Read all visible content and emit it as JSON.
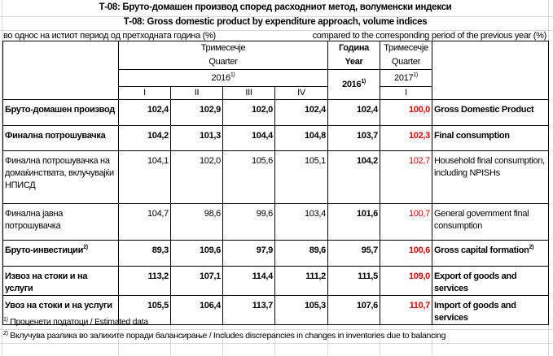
{
  "title_mk": "Т-08: Бруто-домашен производ според расходниот метод, волуменски индекси",
  "title_en": "Т-08: Gross domestic product by expenditure approach, volume indices",
  "subtitle_mk": "во однос на истиот период од претходната година (%)",
  "subtitle_en": "compared to the corresponding period of the previous year (%)",
  "header": {
    "quarter_mk": "Тримесечје",
    "quarter_en": "Quarter",
    "year_mk": "Година",
    "year_en": "Year",
    "year2016": "2016",
    "year2017": "2017",
    "fn1": "1)",
    "quarters": [
      "I",
      "II",
      "III",
      "IV"
    ],
    "q2017": "I"
  },
  "rows": [
    {
      "mk": "Бруто-домашен производ",
      "en": "Gross Domestic Product",
      "values": [
        "102,4",
        "102,9",
        "102,0",
        "102,4"
      ],
      "year": "102,4",
      "q2017": "100,0"
    },
    {
      "mk": "Финална потрошувачка",
      "en": "Final consumption",
      "values": [
        "104,2",
        "101,3",
        "104,4",
        "104,8"
      ],
      "year": "103,7",
      "q2017": "102,3"
    },
    {
      "mk": "Финална потрошувачка на домаќинствата, вклучувајќи НПИСД",
      "en": "Household final consumption, including NPISHs",
      "values": [
        "104,1",
        "102,0",
        "105,6",
        "105,1"
      ],
      "year": "104,2",
      "q2017": "102,7"
    },
    {
      "mk": "Финална јавна потрошувачка",
      "en": "General government final consumption",
      "values": [
        "104,7",
        "98,6",
        "99,6",
        "103,4"
      ],
      "year": "101,6",
      "q2017": "100,7"
    },
    {
      "mk": "Бруто-инвестиции",
      "en": "Gross capital formation",
      "fn": "2)",
      "values": [
        "89,3",
        "109,6",
        "97,9",
        "89,6"
      ],
      "year": "95,7",
      "q2017": "100,6"
    },
    {
      "mk": "Извоз на стоки и на услуги",
      "en": "Export of goods and services",
      "values": [
        "113,2",
        "107,1",
        "114,4",
        "111,2"
      ],
      "year": "111,5",
      "q2017": "109,0"
    },
    {
      "mk": "Увоз на стоки и на услуги",
      "en": "Import of goods and services",
      "values": [
        "105,5",
        "106,4",
        "113,7",
        "105,3"
      ],
      "year": "107,6",
      "q2017": "110,7"
    }
  ],
  "footnotes": [
    {
      "mark": "1)",
      "text": " Проценети податоци / Estimated data"
    },
    {
      "mark": "2)",
      "text": " Вклучува разлика во залихите поради балансирање / Includes discrepancies in changes in inventories due to balancing"
    }
  ],
  "colors": {
    "highlight": "#e00000"
  }
}
